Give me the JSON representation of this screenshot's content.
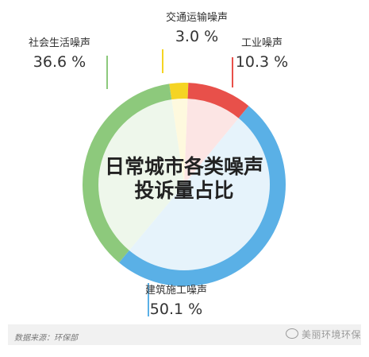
{
  "chart_data": {
    "type": "pie",
    "title": "日常城市各类噪声投诉量占比",
    "title_lines": [
      "日常城市各类噪声",
      "投诉量占比"
    ],
    "slices": [
      {
        "name": "交通运输噪声",
        "value": 3.0,
        "label": "3.0 %",
        "color": "#f5d423"
      },
      {
        "name": "工业噪声",
        "value": 10.3,
        "label": "10.3 %",
        "color": "#e8504a"
      },
      {
        "name": "建筑施工噪声",
        "value": 50.1,
        "label": "50.1 %",
        "color": "#5ab0e6"
      },
      {
        "name": "社会生活噪声",
        "value": 36.6,
        "label": "36.6 %",
        "color": "#8dc97c"
      }
    ],
    "start_slice": "交通运输噪声"
  },
  "footer": {
    "source": "数据来源：环保部",
    "watermark": "美丽环境环保"
  }
}
